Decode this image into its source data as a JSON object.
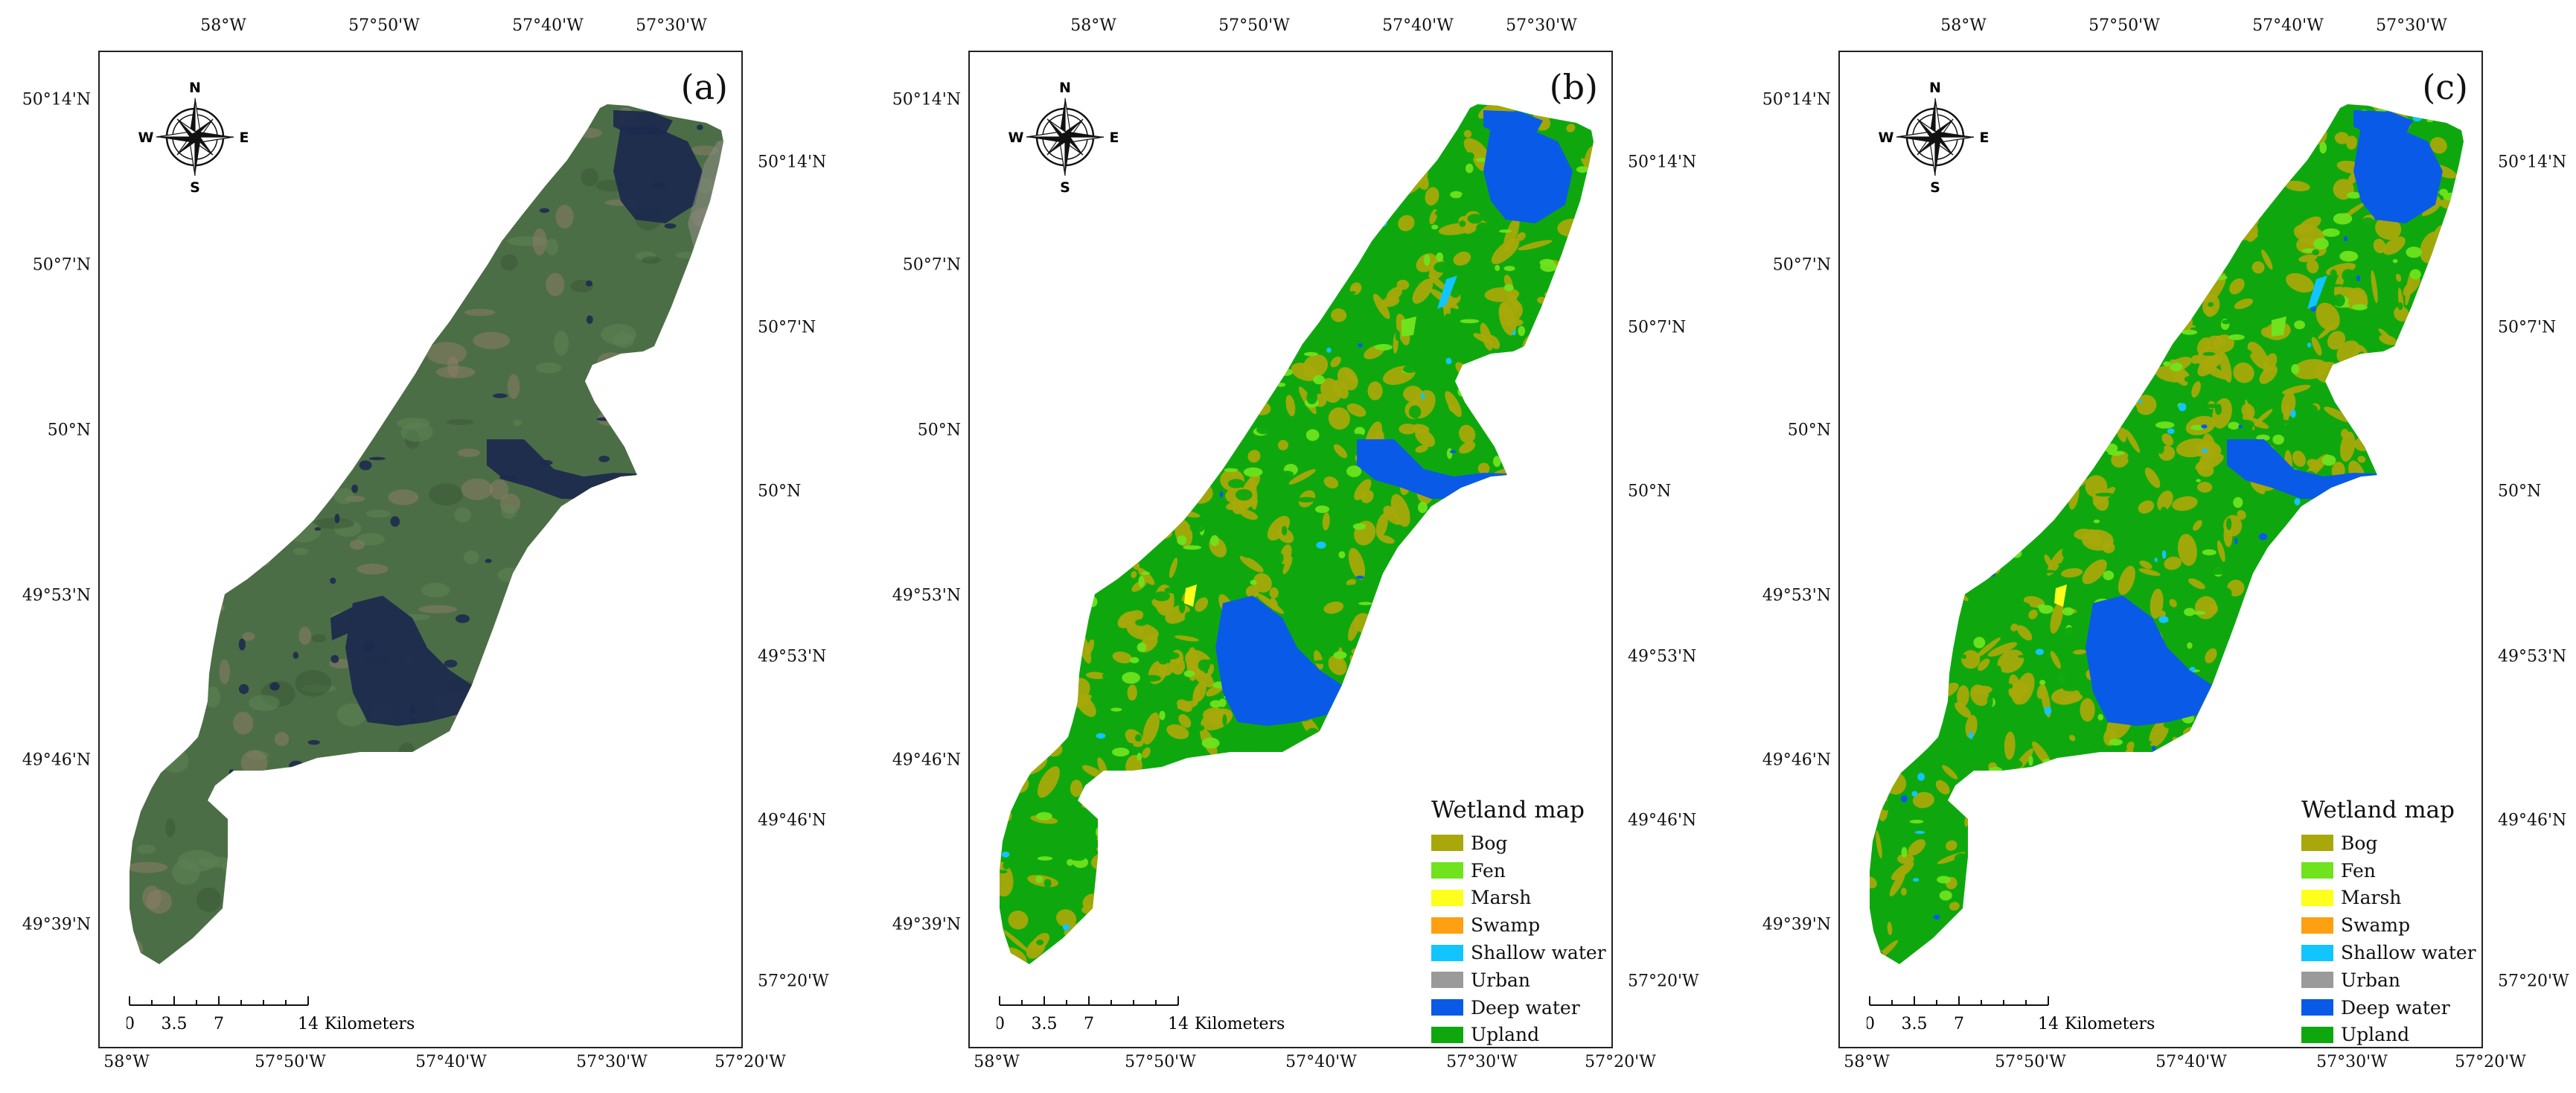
{
  "panels": [
    {
      "label": "(a)",
      "type": "satellite",
      "top_ticks": [
        "58°W",
        "57°50'W",
        "57°40'W",
        "57°30'W"
      ],
      "bottom_ticks": [
        "58°W",
        "57°50'W",
        "57°40'W",
        "57°30'W",
        "57°20'W"
      ],
      "left_ticks": [
        "50°14'N",
        "50°7'N",
        "50°N",
        "49°53'N",
        "49°46'N",
        "49°39'N"
      ],
      "right_ticks": [
        "50°14'N",
        "50°7'N",
        "50°N",
        "49°53'N",
        "49°46'N",
        "57°20'W"
      ],
      "has_legend": false
    },
    {
      "label": "(b)",
      "type": "classified",
      "top_ticks": [
        "58°W",
        "57°50'W",
        "57°40'W",
        "57°30'W"
      ],
      "bottom_ticks": [
        "58°W",
        "57°50'W",
        "57°40'W",
        "57°30'W",
        "57°20'W"
      ],
      "left_ticks": [
        "50°14'N",
        "50°7'N",
        "50°N",
        "49°53'N",
        "49°46'N",
        "49°39'N"
      ],
      "right_ticks": [
        "50°14'N",
        "50°7'N",
        "50°N",
        "49°53'N",
        "49°46'N",
        "57°20'W"
      ],
      "has_legend": true
    },
    {
      "label": "(c)",
      "type": "classified",
      "top_ticks": [
        "58°W",
        "57°50'W",
        "57°40'W",
        "57°30'W"
      ],
      "bottom_ticks": [
        "58°W",
        "57°50'W",
        "57°40'W",
        "57°30'W",
        "57°20'W"
      ],
      "left_ticks": [
        "50°14'N",
        "50°7'N",
        "50°N",
        "49°53'N",
        "49°46'N",
        "49°39'N"
      ],
      "right_ticks": [
        "50°14'N",
        "50°7'N",
        "50°N",
        "49°53'N",
        "49°46'N",
        "57°20'W"
      ],
      "has_legend": true
    }
  ],
  "compass": {
    "n": "N",
    "s": "S",
    "e": "E",
    "w": "W"
  },
  "scalebar": {
    "labels": [
      "0",
      "3.5",
      "7",
      "14"
    ],
    "unit": "Kilometers"
  },
  "legend": {
    "title": "Wetland map",
    "items": [
      {
        "name": "Bog",
        "color": "#a8a80a"
      },
      {
        "name": "Fen",
        "color": "#6fe31e"
      },
      {
        "name": "Marsh",
        "color": "#ffff1e"
      },
      {
        "name": "Swamp",
        "color": "#ff9f12"
      },
      {
        "name": "Shallow water",
        "color": "#12c4ff"
      },
      {
        "name": "Urban",
        "color": "#9a9a9a"
      },
      {
        "name": "Deep water",
        "color": "#0a5ae8"
      },
      {
        "name": "Upland",
        "color": "#0ea80e"
      }
    ]
  },
  "colors": {
    "satellite_land": "#4c6e46",
    "satellite_water": "#1e2a4e",
    "satellite_soil": "#8c7e66",
    "frame": "#222222"
  }
}
